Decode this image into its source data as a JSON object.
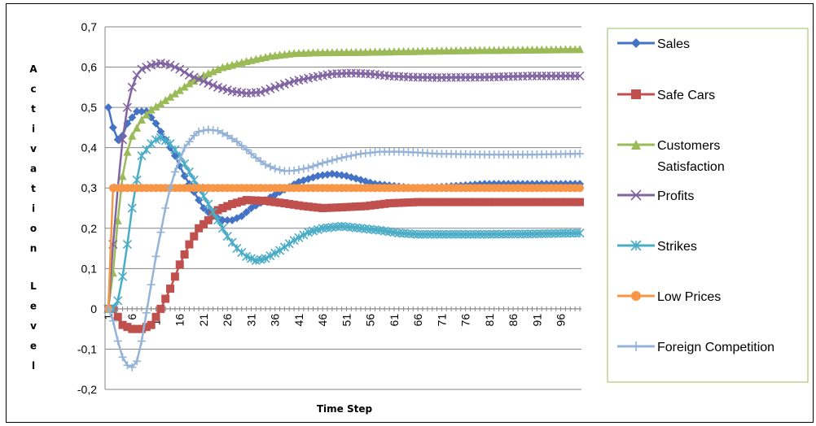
{
  "chart_data": {
    "type": "line",
    "xlabel": "Time Step",
    "ylabel": "Activation Level",
    "ylim": [
      -0.2,
      0.7
    ],
    "yticks": [
      "0,7",
      "0,6",
      "0,5",
      "0,4",
      "0,3",
      "0,2",
      "0,1",
      "0",
      "-0,1",
      "-0,2"
    ],
    "ytick_values": [
      0.7,
      0.6,
      0.5,
      0.4,
      0.3,
      0.2,
      0.1,
      0,
      -0.1,
      -0.2
    ],
    "xticks": [
      "1",
      "6",
      "11",
      "16",
      "21",
      "26",
      "31",
      "36",
      "41",
      "46",
      "51",
      "56",
      "61",
      "66",
      "71",
      "76",
      "81",
      "86",
      "91",
      "96"
    ],
    "xtick_values": [
      1,
      6,
      11,
      16,
      21,
      26,
      31,
      36,
      41,
      46,
      51,
      56,
      61,
      66,
      71,
      76,
      81,
      86,
      91,
      96
    ],
    "x_range": [
      1,
      100
    ],
    "grid": "horizontal",
    "legend_position": "right",
    "series": [
      {
        "name": "Sales",
        "color": "#4472C4",
        "marker": "diamond",
        "points": [
          [
            1,
            0.5
          ],
          [
            2,
            0.45
          ],
          [
            3,
            0.42
          ],
          [
            4,
            0.43
          ],
          [
            5,
            0.46
          ],
          [
            7,
            0.49
          ],
          [
            9,
            0.49
          ],
          [
            11,
            0.46
          ],
          [
            13,
            0.42
          ],
          [
            15,
            0.38
          ],
          [
            17,
            0.33
          ],
          [
            19,
            0.29
          ],
          [
            21,
            0.25
          ],
          [
            23,
            0.23
          ],
          [
            25,
            0.22
          ],
          [
            27,
            0.22
          ],
          [
            29,
            0.23
          ],
          [
            31,
            0.25
          ],
          [
            34,
            0.27
          ],
          [
            37,
            0.29
          ],
          [
            41,
            0.315
          ],
          [
            45,
            0.33
          ],
          [
            48,
            0.335
          ],
          [
            51,
            0.33
          ],
          [
            54,
            0.32
          ],
          [
            57,
            0.31
          ],
          [
            61,
            0.305
          ],
          [
            65,
            0.3
          ],
          [
            70,
            0.302
          ],
          [
            75,
            0.306
          ],
          [
            80,
            0.31
          ],
          [
            86,
            0.31
          ],
          [
            92,
            0.31
          ],
          [
            100,
            0.31
          ]
        ]
      },
      {
        "name": "Safe Cars",
        "color": "#C0504D",
        "marker": "square",
        "points": [
          [
            1,
            0.0
          ],
          [
            2,
            0.0
          ],
          [
            3,
            -0.02
          ],
          [
            4,
            -0.04
          ],
          [
            6,
            -0.05
          ],
          [
            8,
            -0.05
          ],
          [
            10,
            -0.04
          ],
          [
            12,
            0.0
          ],
          [
            14,
            0.05
          ],
          [
            16,
            0.11
          ],
          [
            18,
            0.16
          ],
          [
            20,
            0.2
          ],
          [
            22,
            0.22
          ],
          [
            24,
            0.245
          ],
          [
            27,
            0.26
          ],
          [
            30,
            0.27
          ],
          [
            34,
            0.268
          ],
          [
            38,
            0.262
          ],
          [
            42,
            0.255
          ],
          [
            46,
            0.25
          ],
          [
            50,
            0.252
          ],
          [
            55,
            0.255
          ],
          [
            60,
            0.262
          ],
          [
            66,
            0.265
          ],
          [
            72,
            0.265
          ],
          [
            80,
            0.265
          ],
          [
            90,
            0.265
          ],
          [
            100,
            0.265
          ]
        ]
      },
      {
        "name": "Customers Satisfaction",
        "color": "#9BBB59",
        "marker": "triangle",
        "points": [
          [
            1,
            0.0
          ],
          [
            2,
            0.09
          ],
          [
            3,
            0.22
          ],
          [
            4,
            0.33
          ],
          [
            5,
            0.39
          ],
          [
            6,
            0.43
          ],
          [
            8,
            0.47
          ],
          [
            10,
            0.495
          ],
          [
            12,
            0.51
          ],
          [
            15,
            0.535
          ],
          [
            18,
            0.56
          ],
          [
            21,
            0.58
          ],
          [
            25,
            0.6
          ],
          [
            30,
            0.615
          ],
          [
            35,
            0.628
          ],
          [
            40,
            0.635
          ],
          [
            45,
            0.637
          ],
          [
            55,
            0.638
          ],
          [
            65,
            0.64
          ],
          [
            75,
            0.642
          ],
          [
            85,
            0.643
          ],
          [
            100,
            0.645
          ]
        ]
      },
      {
        "name": "Profits",
        "color": "#8064A2",
        "marker": "x",
        "points": [
          [
            1,
            0.0
          ],
          [
            2,
            0.16
          ],
          [
            3,
            0.3
          ],
          [
            4,
            0.42
          ],
          [
            5,
            0.5
          ],
          [
            6,
            0.55
          ],
          [
            7,
            0.58
          ],
          [
            8,
            0.595
          ],
          [
            10,
            0.605
          ],
          [
            12,
            0.61
          ],
          [
            14,
            0.605
          ],
          [
            16,
            0.595
          ],
          [
            18,
            0.58
          ],
          [
            21,
            0.565
          ],
          [
            24,
            0.55
          ],
          [
            27,
            0.54
          ],
          [
            30,
            0.535
          ],
          [
            33,
            0.538
          ],
          [
            36,
            0.55
          ],
          [
            40,
            0.565
          ],
          [
            44,
            0.575
          ],
          [
            48,
            0.583
          ],
          [
            52,
            0.585
          ],
          [
            56,
            0.583
          ],
          [
            60,
            0.578
          ],
          [
            65,
            0.575
          ],
          [
            70,
            0.574
          ],
          [
            80,
            0.575
          ],
          [
            90,
            0.578
          ],
          [
            100,
            0.578
          ]
        ]
      },
      {
        "name": "Strikes",
        "color": "#4BACC6",
        "marker": "star",
        "points": [
          [
            1,
            0.0
          ],
          [
            2,
            0.0
          ],
          [
            3,
            0.02
          ],
          [
            4,
            0.08
          ],
          [
            5,
            0.16
          ],
          [
            6,
            0.25
          ],
          [
            7,
            0.32
          ],
          [
            8,
            0.38
          ],
          [
            10,
            0.41
          ],
          [
            11,
            0.42
          ],
          [
            12,
            0.425
          ],
          [
            14,
            0.41
          ],
          [
            16,
            0.38
          ],
          [
            18,
            0.34
          ],
          [
            20,
            0.3
          ],
          [
            22,
            0.26
          ],
          [
            24,
            0.22
          ],
          [
            26,
            0.18
          ],
          [
            28,
            0.15
          ],
          [
            30,
            0.13
          ],
          [
            32,
            0.12
          ],
          [
            34,
            0.125
          ],
          [
            37,
            0.145
          ],
          [
            40,
            0.17
          ],
          [
            43,
            0.19
          ],
          [
            46,
            0.2
          ],
          [
            50,
            0.205
          ],
          [
            54,
            0.2
          ],
          [
            58,
            0.195
          ],
          [
            62,
            0.188
          ],
          [
            66,
            0.185
          ],
          [
            72,
            0.185
          ],
          [
            80,
            0.185
          ],
          [
            90,
            0.186
          ],
          [
            100,
            0.188
          ]
        ]
      },
      {
        "name": "Low Prices",
        "color": "#F79646",
        "marker": "circle",
        "points": [
          [
            1,
            0.0
          ],
          [
            2,
            0.3
          ],
          [
            3,
            0.3
          ],
          [
            10,
            0.3
          ],
          [
            20,
            0.3
          ],
          [
            30,
            0.3
          ],
          [
            40,
            0.3
          ],
          [
            50,
            0.3
          ],
          [
            60,
            0.3
          ],
          [
            70,
            0.3
          ],
          [
            80,
            0.3
          ],
          [
            90,
            0.3
          ],
          [
            100,
            0.3
          ]
        ]
      },
      {
        "name": "Foreign Competition",
        "color": "#95B3D7",
        "marker": "plus",
        "points": [
          [
            1,
            0.0
          ],
          [
            2,
            -0.03
          ],
          [
            3,
            -0.08
          ],
          [
            4,
            -0.12
          ],
          [
            5,
            -0.14
          ],
          [
            6,
            -0.145
          ],
          [
            7,
            -0.13
          ],
          [
            8,
            -0.08
          ],
          [
            9,
            -0.01
          ],
          [
            10,
            0.06
          ],
          [
            11,
            0.13
          ],
          [
            12,
            0.19
          ],
          [
            13,
            0.25
          ],
          [
            14,
            0.3
          ],
          [
            15,
            0.34
          ],
          [
            16,
            0.37
          ],
          [
            17,
            0.4
          ],
          [
            18,
            0.415
          ],
          [
            19,
            0.43
          ],
          [
            20,
            0.44
          ],
          [
            22,
            0.445
          ],
          [
            24,
            0.442
          ],
          [
            26,
            0.43
          ],
          [
            28,
            0.415
          ],
          [
            30,
            0.395
          ],
          [
            32,
            0.375
          ],
          [
            34,
            0.358
          ],
          [
            36,
            0.348
          ],
          [
            38,
            0.342
          ],
          [
            40,
            0.343
          ],
          [
            43,
            0.35
          ],
          [
            46,
            0.362
          ],
          [
            50,
            0.375
          ],
          [
            54,
            0.385
          ],
          [
            58,
            0.39
          ],
          [
            62,
            0.39
          ],
          [
            66,
            0.388
          ],
          [
            70,
            0.385
          ],
          [
            80,
            0.383
          ],
          [
            90,
            0.383
          ],
          [
            100,
            0.385
          ]
        ]
      }
    ]
  }
}
